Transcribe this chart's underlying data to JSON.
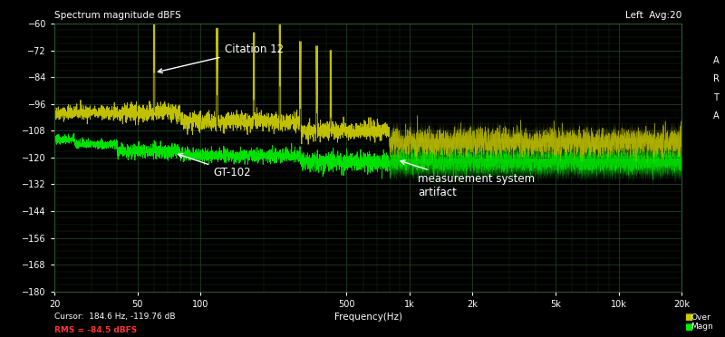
{
  "title": "Spectrum magnitude dBFS",
  "top_right_text": "Left  Avg:20",
  "right_letters": [
    "A",
    "R",
    "T",
    "A"
  ],
  "xlabel": "Frequency(Hz)",
  "ylim": [
    -180,
    -60
  ],
  "yticks": [
    -180,
    -168,
    -156,
    -144,
    -132,
    -120,
    -108,
    -96,
    -84,
    -72,
    -60
  ],
  "xmin": 20,
  "xmax": 20000,
  "xtick_labels": [
    "20",
    "50",
    "100",
    "500",
    "1k",
    "2k",
    "5k",
    "10k",
    "20k"
  ],
  "xtick_values": [
    20,
    50,
    100,
    500,
    1000,
    2000,
    5000,
    10000,
    20000
  ],
  "bg_color": "#000000",
  "grid_color": "#1f4020",
  "plot_area_bg": "#000000",
  "citation12_color": "#cccc00",
  "gt102_color": "#00ee00",
  "cursor_text": "Cursor:  184.6 Hz, -119.76 dB",
  "rms_text": "RMS = -84.5 dBFS",
  "legend_over_color": "#cccc00",
  "legend_magn_color": "#00ee00",
  "legend_over": "Over",
  "legend_magn": "Magn",
  "annotation_citation": "Citation 12",
  "annotation_gt102": "GT-102",
  "annotation_artifact": "measurement system\nartifact"
}
